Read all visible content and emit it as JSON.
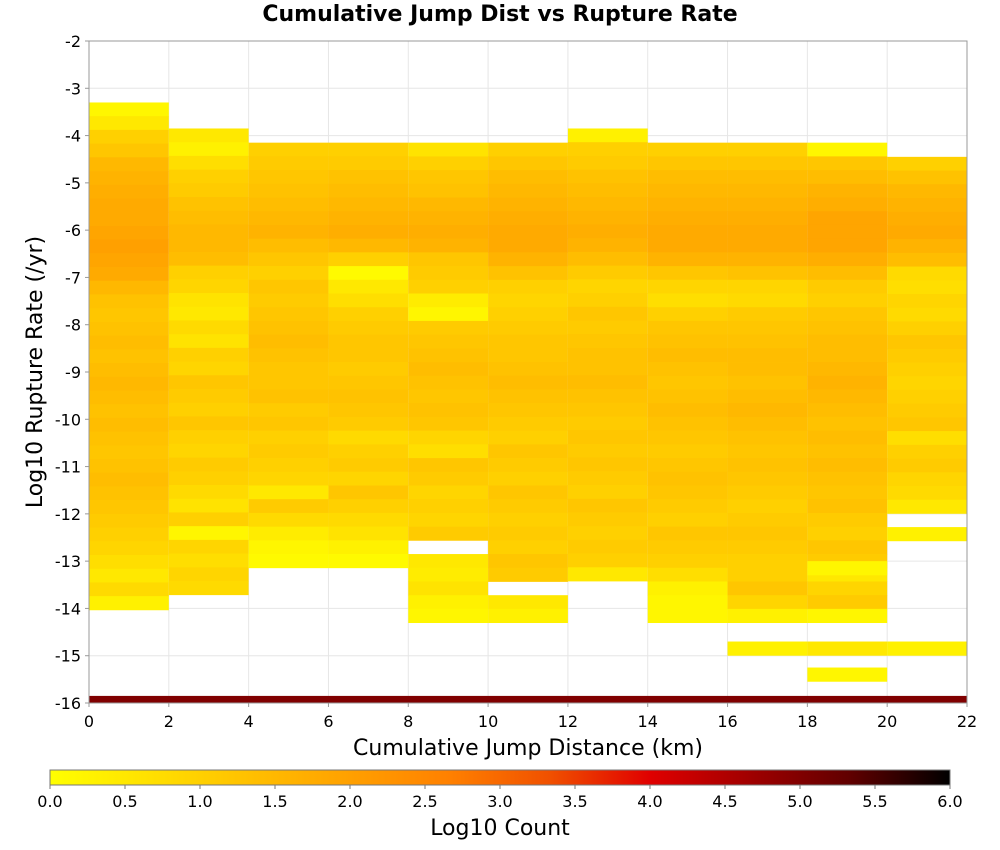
{
  "chart_data": {
    "type": "heatmap",
    "title": "Cumulative Jump Dist vs Rupture Rate",
    "xlabel": "Cumulative Jump Distance (km)",
    "ylabel": "Log10 Rupture Rate (/yr)",
    "xlim": [
      0,
      22
    ],
    "ylim": [
      -16,
      -2
    ],
    "x_ticks": [
      "0",
      "2",
      "4",
      "6",
      "8",
      "10",
      "12",
      "14",
      "16",
      "18",
      "20",
      "22"
    ],
    "y_ticks": [
      "-2",
      "-3",
      "-4",
      "-5",
      "-6",
      "-7",
      "-8",
      "-9",
      "-10",
      "-11",
      "-12",
      "-13",
      "-14",
      "-15",
      "-16"
    ],
    "bin_width_x": 2,
    "bin_height_y": 0.29,
    "grid": true,
    "colorbar": {
      "label": "Log10 Count",
      "range": [
        0.0,
        6.0
      ],
      "ticks": [
        "0.0",
        "0.5",
        "1.0",
        "1.5",
        "2.0",
        "2.5",
        "3.0",
        "3.5",
        "4.0",
        "4.5",
        "5.0",
        "5.5",
        "6.0"
      ],
      "palette": [
        "#ffff00",
        "#ffe000",
        "#ffc000",
        "#ffa000",
        "#ff8000",
        "#f05000",
        "#e00000",
        "#a00000",
        "#600000",
        "#000000"
      ]
    },
    "columns": [
      {
        "x": [
          0,
          2
        ],
        "y_top": -3.3,
        "log10_counts": [
          0.2,
          0.5,
          1.0,
          1.2,
          1.5,
          1.6,
          1.7,
          1.8,
          1.8,
          1.9,
          2.0,
          1.9,
          1.8,
          1.5,
          1.3,
          1.2,
          1.3,
          1.4,
          1.3,
          1.4,
          1.5,
          1.4,
          1.3,
          1.4,
          1.3,
          1.2,
          1.3,
          1.4,
          1.3,
          1.2,
          1.1,
          1.0,
          0.9,
          0.7,
          0.5,
          0.8,
          0.3
        ]
      },
      {
        "x": [
          2,
          4
        ],
        "y_top": -3.85,
        "log10_counts": [
          0.5,
          0.3,
          0.7,
          1.0,
          1.1,
          1.3,
          1.4,
          1.5,
          1.5,
          1.4,
          1.0,
          0.9,
          0.6,
          0.5,
          0.8,
          0.6,
          1.0,
          0.9,
          1.2,
          1.1,
          1.0,
          1.2,
          1.0,
          0.9,
          1.1,
          1.0,
          0.8,
          0.6,
          1.0,
          0.2,
          0.9,
          0.7,
          0.9,
          0.8
        ]
      },
      {
        "x": [
          4,
          6
        ],
        "y_top": -4.15,
        "log10_counts": [
          1.0,
          1.1,
          1.2,
          1.3,
          1.4,
          1.5,
          1.6,
          1.4,
          1.2,
          1.0,
          1.2,
          1.1,
          1.2,
          1.3,
          1.4,
          1.3,
          1.2,
          1.2,
          1.3,
          1.1,
          1.2,
          1.0,
          1.1,
          1.0,
          0.9,
          0.5,
          1.1,
          0.8,
          0.4,
          0.2,
          0.1
        ]
      },
      {
        "x": [
          6,
          8
        ],
        "y_top": -4.15,
        "log10_counts": [
          1.0,
          1.1,
          1.3,
          1.4,
          1.5,
          1.6,
          1.7,
          1.5,
          1.0,
          0.1,
          0.5,
          0.7,
          1.0,
          1.1,
          1.2,
          1.2,
          1.1,
          1.2,
          1.3,
          1.2,
          1.1,
          0.8,
          1.0,
          1.1,
          0.9,
          1.2,
          1.0,
          0.8,
          0.6,
          0.3,
          0.1
        ]
      },
      {
        "x": [
          8,
          10
        ],
        "y_top": -4.15,
        "log10_counts": [
          0.6,
          1.0,
          1.2,
          1.3,
          1.5,
          1.6,
          1.7,
          1.6,
          1.2,
          1.1,
          1.0,
          0.4,
          0.2,
          1.1,
          1.2,
          1.3,
          1.4,
          1.3,
          1.2,
          1.3,
          1.2,
          0.9,
          0.7,
          1.2,
          1.1,
          0.9,
          1.0,
          0.9,
          1.1,
          -1,
          0.5,
          0.4,
          0.6,
          0.3,
          0.2
        ]
      },
      {
        "x": [
          10,
          12
        ],
        "y_top": -4.15,
        "log10_counts": [
          1.0,
          1.2,
          1.4,
          1.5,
          1.6,
          1.7,
          1.8,
          1.8,
          1.6,
          1.3,
          1.0,
          0.9,
          1.0,
          1.1,
          1.2,
          1.2,
          1.3,
          1.4,
          1.3,
          1.2,
          1.1,
          1.0,
          1.2,
          1.1,
          1.0,
          1.2,
          1.1,
          1.0,
          1.1,
          1.0,
          1.2,
          1.1,
          -1,
          0.5,
          0.3
        ]
      },
      {
        "x": [
          12,
          14
        ],
        "y_top": -3.85,
        "log10_counts": [
          0.3,
          1.0,
          1.1,
          1.3,
          1.4,
          1.5,
          1.6,
          1.7,
          1.6,
          1.4,
          1.1,
          0.9,
          1.0,
          1.2,
          1.1,
          1.2,
          1.3,
          1.3,
          1.4,
          1.3,
          1.2,
          1.1,
          1.2,
          1.1,
          1.2,
          1.1,
          1.0,
          1.2,
          1.1,
          1.0,
          1.1,
          1.0,
          0.5
        ]
      },
      {
        "x": [
          14,
          16
        ],
        "y_top": -4.15,
        "log10_counts": [
          1.0,
          1.2,
          1.4,
          1.5,
          1.6,
          1.7,
          1.8,
          1.8,
          1.6,
          1.2,
          0.9,
          0.7,
          1.0,
          1.2,
          1.3,
          1.4,
          1.3,
          1.2,
          1.3,
          1.4,
          1.3,
          1.2,
          1.1,
          1.2,
          1.3,
          1.2,
          1.1,
          1.0,
          1.2,
          1.1,
          1.0,
          0.7,
          0.3,
          0.2,
          0.2
        ]
      },
      {
        "x": [
          16,
          18
        ],
        "y_top": -4.15,
        "log10_counts": [
          1.0,
          1.2,
          1.4,
          1.5,
          1.6,
          1.7,
          1.8,
          1.8,
          1.6,
          1.3,
          0.9,
          0.8,
          1.1,
          1.2,
          1.3,
          1.4,
          1.4,
          1.3,
          1.4,
          1.5,
          1.4,
          1.3,
          1.2,
          1.3,
          1.2,
          1.1,
          1.0,
          1.1,
          1.2,
          1.1,
          1.0,
          1.0,
          1.2,
          0.9,
          0.3
        ]
      },
      {
        "x": [
          18,
          20
        ],
        "y_top": -4.15,
        "log10_counts": [
          0.2,
          1.2,
          1.4,
          1.6,
          1.7,
          1.9,
          1.9,
          1.9,
          1.7,
          1.4,
          1.1,
          1.0,
          1.2,
          1.3,
          1.4,
          1.4,
          1.5,
          1.6,
          1.5,
          1.4,
          1.3,
          1.4,
          1.3,
          1.4,
          1.3,
          1.2,
          1.3,
          1.1,
          1.0,
          1.2,
          1.1,
          0.5,
          0.9,
          1.1,
          0.2
        ]
      },
      {
        "x": [
          20,
          22
        ],
        "y_top": -4.45,
        "log10_counts": [
          1.0,
          1.3,
          1.5,
          1.6,
          1.7,
          1.8,
          1.6,
          1.4,
          0.8,
          0.7,
          0.9,
          0.8,
          1.0,
          1.2,
          1.1,
          1.0,
          0.9,
          1.0,
          1.1,
          1.2,
          0.7,
          1.0,
          1.1,
          0.9,
          0.8,
          0.5,
          -1,
          0.3
        ]
      }
    ],
    "extra_cells": [
      {
        "x": [
          18,
          20
        ],
        "y": [
          -13.3,
          -13.0
        ],
        "log10_count": 0.2
      },
      {
        "x": [
          16,
          18
        ],
        "y": [
          -15.0,
          -14.7
        ],
        "log10_count": 0.3
      },
      {
        "x": [
          18,
          20
        ],
        "y": [
          -15.0,
          -14.7
        ],
        "log10_count": 0.5
      },
      {
        "x": [
          20,
          22
        ],
        "y": [
          -15.0,
          -14.7
        ],
        "log10_count": 0.3
      },
      {
        "x": [
          18,
          20
        ],
        "y": [
          -15.55,
          -15.25
        ],
        "log10_count": 0.2
      },
      {
        "x": [
          0,
          22
        ],
        "y": [
          -16.0,
          -15.85
        ],
        "log10_count": 5.0
      }
    ]
  }
}
